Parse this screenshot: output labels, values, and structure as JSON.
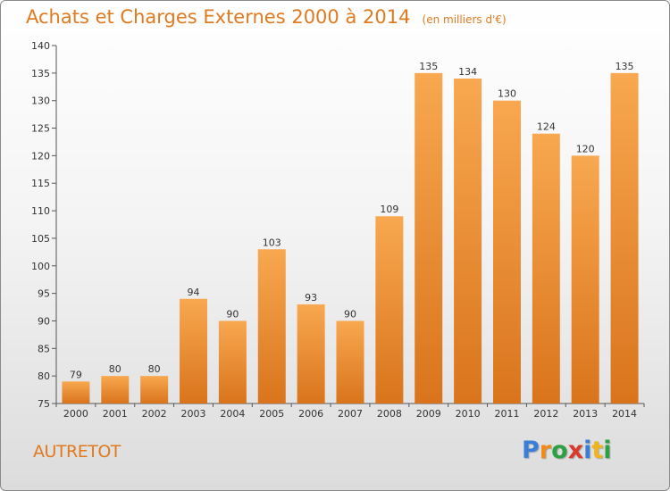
{
  "header": {
    "title": "Achats et Charges Externes 2000 à 2014",
    "subtitle": "(en milliers d'€)"
  },
  "footer": {
    "place": "AUTRETOT",
    "logo_letters": [
      "P",
      "r",
      "o",
      "x",
      "i",
      "t",
      "i"
    ],
    "logo_colors": [
      "#3a7fd5",
      "#f08a1d",
      "#2ea043",
      "#d93a2b",
      "#3a7fd5",
      "#f0b41d",
      "#2ea043"
    ]
  },
  "colors": {
    "bar_light": "#f8a850",
    "bar_dark": "#d9741c",
    "accent": "#e07a1f",
    "axis": "#555555"
  },
  "chart_data": {
    "type": "bar",
    "title": "Achats et Charges Externes 2000 à 2014",
    "subtitle": "(en milliers d'€)",
    "categories": [
      "2000",
      "2001",
      "2002",
      "2003",
      "2004",
      "2005",
      "2006",
      "2007",
      "2008",
      "2009",
      "2010",
      "2011",
      "2012",
      "2013",
      "2014"
    ],
    "values": [
      79,
      80,
      80,
      94,
      90,
      103,
      93,
      90,
      109,
      135,
      134,
      130,
      124,
      120,
      135
    ],
    "data_labels": [
      "79",
      "80",
      "80",
      "94",
      "90",
      "103",
      "93",
      "90",
      "109",
      "135",
      "134",
      "130",
      "124",
      "120",
      "135"
    ],
    "ylim": [
      75,
      140
    ],
    "yticks": [
      75,
      80,
      85,
      90,
      95,
      100,
      105,
      110,
      115,
      120,
      125,
      130,
      135,
      140
    ],
    "grid": false,
    "legend": "none",
    "xlabel": "",
    "ylabel": ""
  }
}
